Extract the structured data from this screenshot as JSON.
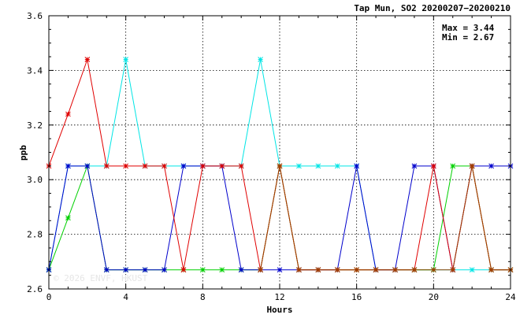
{
  "chart_data": {
    "type": "line",
    "title": "Tap Mun, SO2 20200207−20200210",
    "xlabel": "Hours",
    "ylabel": "ppb",
    "xlim": [
      0,
      24
    ],
    "ylim": [
      2.6,
      3.6
    ],
    "x_ticks": [
      0,
      4,
      8,
      12,
      16,
      20,
      24
    ],
    "y_ticks": [
      2.6,
      2.8,
      3.0,
      3.2,
      3.4,
      3.6
    ],
    "y_tick_labels": [
      "2.6",
      "2.8",
      "3.0",
      "3.2",
      "3.4",
      "3.6"
    ],
    "grid": true,
    "annotations": {
      "max_text": "Max = 3.44",
      "min_text": "Min = 2.67"
    },
    "watermark": "© 2026  ENVF, HKUST",
    "x": [
      0,
      1,
      2,
      3,
      4,
      5,
      6,
      7,
      8,
      9,
      10,
      11,
      12,
      13,
      14,
      15,
      16,
      17,
      18,
      19,
      20,
      21,
      22,
      23,
      24
    ],
    "series": [
      {
        "color": "#00e5e5",
        "values": [
          2.67,
          3.05,
          3.05,
          3.05,
          3.44,
          3.05,
          3.05,
          3.05,
          3.05,
          3.05,
          3.05,
          3.44,
          3.05,
          3.05,
          3.05,
          3.05,
          3.05,
          2.67,
          2.67,
          2.67,
          2.67,
          2.67,
          2.67,
          2.67,
          2.67
        ]
      },
      {
        "color": "#00d000",
        "values": [
          2.67,
          2.86,
          3.05,
          2.67,
          2.67,
          2.67,
          2.67,
          2.67,
          2.67,
          2.67,
          2.67,
          2.67,
          3.05,
          2.67,
          2.67,
          2.67,
          2.67,
          2.67,
          2.67,
          2.67,
          2.67,
          3.05,
          3.05,
          2.67,
          2.67
        ]
      },
      {
        "color": "#0000cc",
        "values": [
          2.67,
          3.05,
          3.05,
          2.67,
          2.67,
          2.67,
          2.67,
          3.05,
          3.05,
          3.05,
          2.67,
          2.67,
          2.67,
          2.67,
          2.67,
          2.67,
          3.05,
          2.67,
          2.67,
          3.05,
          3.05,
          2.67,
          3.05,
          3.05,
          3.05
        ]
      },
      {
        "color": "#e00000",
        "values": [
          3.05,
          3.24,
          3.44,
          3.05,
          3.05,
          3.05,
          3.05,
          2.67,
          3.05,
          3.05,
          3.05,
          2.67,
          3.05,
          2.67,
          2.67,
          2.67,
          2.67,
          2.67,
          2.67,
          2.67,
          3.05,
          2.67,
          3.05,
          2.67,
          2.67
        ]
      },
      {
        "color": "#a04000",
        "values": [
          null,
          null,
          null,
          null,
          null,
          null,
          null,
          null,
          null,
          null,
          null,
          2.67,
          3.05,
          2.67,
          2.67,
          2.67,
          2.67,
          2.67,
          2.67,
          2.67,
          2.67,
          2.67,
          3.05,
          2.67,
          2.67
        ]
      }
    ]
  }
}
